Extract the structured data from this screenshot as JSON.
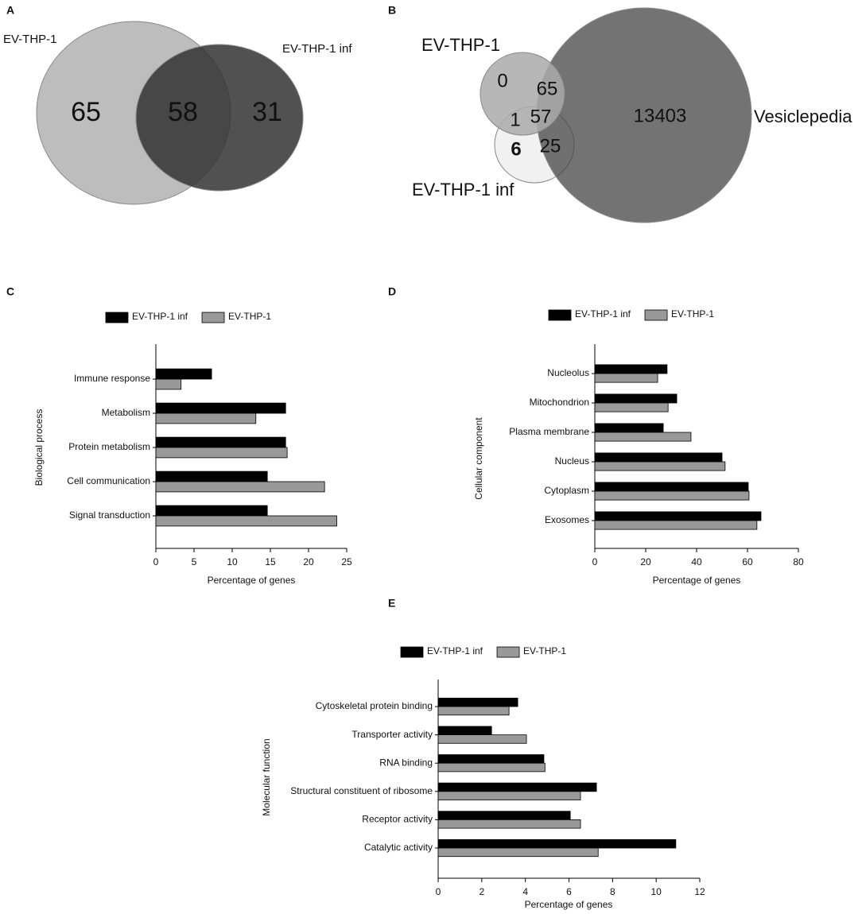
{
  "chart_data": [
    {
      "type": "venn",
      "label": "A",
      "sets": [
        {
          "name": "EV-THP-1",
          "color": "#bdbdbd"
        },
        {
          "name": "EV-THP-1 inf",
          "color": "#333333"
        }
      ],
      "values": [
        65,
        58,
        31
      ]
    },
    {
      "type": "venn",
      "label": "B",
      "sets": [
        {
          "name": "EV-THP-1",
          "color": "#444444"
        },
        {
          "name": "EV-THP-1 inf",
          "color": "#aaaaaa"
        },
        {
          "name": "Vesiclepedia",
          "color": "#e6e6e6"
        }
      ],
      "values": [
        0,
        65,
        1,
        57,
        6,
        25,
        13403
      ]
    },
    {
      "type": "hbar",
      "label": "C",
      "ylabel": "Biological process",
      "xlabel": "Percentage of genes",
      "categories": [
        "Immune response",
        "Metabolism",
        "Protein metabolism",
        "Cell communication",
        "Signal transduction"
      ],
      "series": [
        {
          "name": "EV-THP-1 inf",
          "color": "#000000",
          "values": [
            7.3,
            17.0,
            17.0,
            14.6,
            14.6
          ]
        },
        {
          "name": "EV-THP-1",
          "color": "#999999",
          "values": [
            3.3,
            13.1,
            17.2,
            22.1,
            23.7
          ]
        }
      ],
      "xlim": [
        0,
        25
      ],
      "xticks": [
        0,
        5,
        10,
        15,
        20,
        25
      ]
    },
    {
      "type": "hbar",
      "label": "D",
      "ylabel": "Cellular component",
      "xlabel": "Percentage of genes",
      "categories": [
        "Nucleolus",
        "Mitochondrion",
        "Plasma membrane",
        "Nucleus",
        "Cytoplasm",
        "Exosomes"
      ],
      "series": [
        {
          "name": "EV-THP-1 inf",
          "color": "#000000",
          "values": [
            28.4,
            32.2,
            26.9,
            50,
            60.3,
            65.3
          ]
        },
        {
          "name": "EV-THP-1",
          "color": "#999999",
          "values": [
            24.7,
            28.8,
            37.8,
            51.2,
            60.6,
            63.7
          ]
        }
      ],
      "xlim": [
        0,
        80
      ],
      "xticks": [
        0,
        20,
        40,
        60,
        80
      ]
    },
    {
      "type": "hbar",
      "label": "E",
      "ylabel": "Molecular function",
      "xlabel": "Percentage of genes",
      "categories": [
        "Cytoskeletal protein binding",
        "Transporter activity",
        "RNA binding",
        "Structural constituent of ribosome",
        "Receptor activity",
        "Catalytic activity"
      ],
      "series": [
        {
          "name": "EV-THP-1 inf",
          "color": "#000000",
          "values": [
            3.65,
            2.45,
            4.85,
            7.26,
            6.06,
            10.9
          ]
        },
        {
          "name": "EV-THP-1",
          "color": "#999999",
          "values": [
            3.25,
            4.05,
            4.9,
            6.53,
            6.53,
            7.34
          ]
        }
      ],
      "xlim": [
        0,
        12
      ],
      "xticks": [
        0,
        2,
        4,
        6,
        8,
        10,
        12
      ]
    }
  ]
}
